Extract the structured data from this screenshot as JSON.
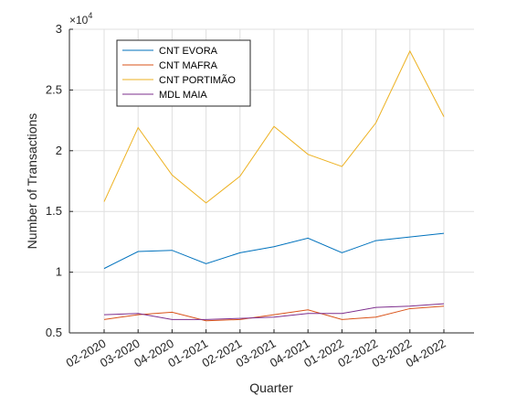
{
  "chart_data": {
    "type": "line",
    "xlabel": "Quarter",
    "ylabel": "Number of Transactions",
    "categories": [
      "02-2020",
      "03-2020",
      "04-2020",
      "01-2021",
      "02-2021",
      "03-2021",
      "04-2021",
      "01-2022",
      "02-2022",
      "03-2022",
      "04-2022"
    ],
    "y_exponent_label": "×10",
    "y_exponent_power": "4",
    "ylim": [
      5000,
      30000
    ],
    "y_ticks": [
      5000,
      10000,
      15000,
      20000,
      25000,
      30000
    ],
    "y_tick_labels": [
      "0.5",
      "1",
      "1.5",
      "2",
      "2.5",
      "3"
    ],
    "grid": true,
    "legend_position": "top-left",
    "series": [
      {
        "name": "CNT EVORA",
        "color": "#0072BD",
        "values": [
          10300,
          11700,
          11800,
          10700,
          11600,
          12100,
          12800,
          11600,
          12600,
          12900,
          13200
        ]
      },
      {
        "name": "CNT MAFRA",
        "color": "#D95319",
        "values": [
          6100,
          6500,
          6700,
          6000,
          6100,
          6500,
          6900,
          6100,
          6300,
          7000,
          7200
        ]
      },
      {
        "name": "CNT PORTIMÃO",
        "color": "#EDB120",
        "values": [
          15800,
          21900,
          18000,
          15700,
          17900,
          22000,
          19700,
          18700,
          22300,
          28200,
          22800
        ]
      },
      {
        "name": "MDL MAIA",
        "color": "#7E2F8E",
        "values": [
          6500,
          6600,
          6100,
          6100,
          6200,
          6300,
          6600,
          6600,
          7100,
          7200,
          7400
        ]
      }
    ]
  }
}
